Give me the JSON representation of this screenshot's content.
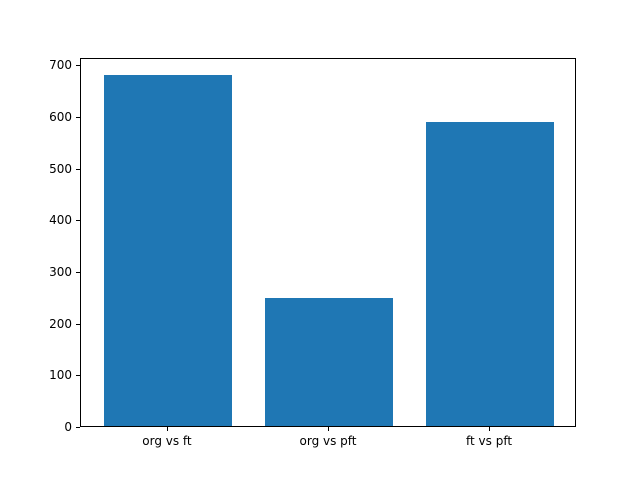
{
  "chart_data": {
    "type": "bar",
    "categories": [
      "org vs ft",
      "org vs pft",
      "ft vs pft"
    ],
    "values": [
      680,
      248,
      588
    ],
    "title": "",
    "xlabel": "",
    "ylabel": "",
    "ylim": [
      0,
      714
    ],
    "yticks": [
      0,
      100,
      200,
      300,
      400,
      500,
      600,
      700
    ],
    "bar_color": "#1f77b4",
    "axis_color": "#000000",
    "background_color": "#ffffff",
    "grid": false,
    "legend": "none",
    "bar_width_fraction": 0.8
  }
}
